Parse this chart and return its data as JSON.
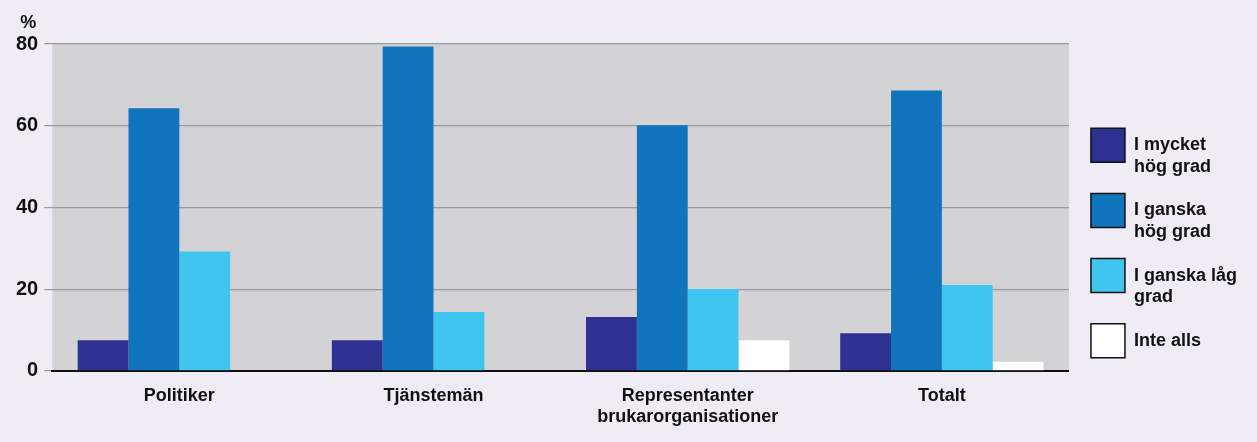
{
  "chart_data": {
    "type": "bar",
    "ylabel": "%",
    "categories": [
      "Politiker",
      "Tjänstemän",
      "Representanter brukarorganisationer",
      "Totalt"
    ],
    "series": [
      {
        "name": "I mycket hög grad",
        "color": "#2e3192",
        "values": [
          7.5,
          7.5,
          13.2,
          9.2
        ]
      },
      {
        "name": "I ganska hög grad",
        "color": "#1175bd",
        "values": [
          64.3,
          79.4,
          60.1,
          68.6
        ]
      },
      {
        "name": "I ganska låg grad",
        "color": "#40c4f0",
        "values": [
          29.2,
          14.4,
          20,
          21
        ]
      },
      {
        "name": "Inte alls",
        "color": "#ffffff",
        "values": [
          0,
          0,
          7.5,
          2.2
        ]
      }
    ],
    "ylim": [
      0,
      80
    ],
    "yticks": [
      0,
      20,
      40,
      60,
      80
    ],
    "grid": "y",
    "legend": "right"
  }
}
